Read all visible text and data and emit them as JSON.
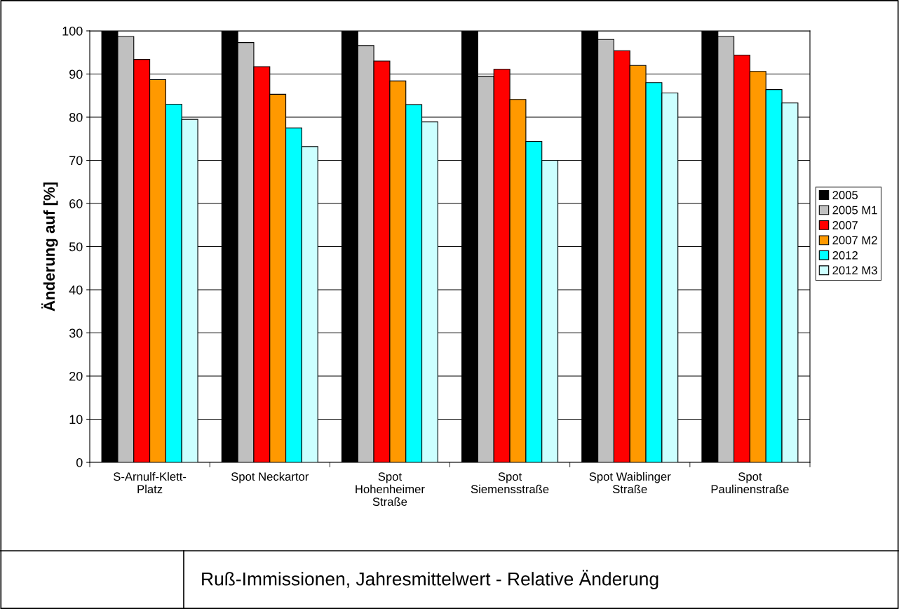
{
  "chart_data": {
    "type": "bar",
    "title": "Ruß-Immissionen, Jahresmittelwert - Relative Änderung",
    "ylabel": "Änderung auf [%]",
    "categories": [
      "S-Arnulf-Klett-\nPlatz",
      "Spot Neckartor",
      "Spot\nHohenheimer\nStraße",
      "Spot\nSiemensstraße",
      "Spot Waiblinger\nStraße",
      "Spot\nPaulinenstraße"
    ],
    "series": [
      {
        "name": "2005",
        "color": "#000000",
        "values": [
          100,
          100,
          100,
          100,
          100,
          100
        ]
      },
      {
        "name": "2005 M1",
        "color": "#c0c0c0",
        "values": [
          98.7,
          97.3,
          96.6,
          89.5,
          98.0,
          98.7
        ]
      },
      {
        "name": "2007",
        "color": "#ff0000",
        "values": [
          93.4,
          91.7,
          93.0,
          91.1,
          95.4,
          94.4
        ]
      },
      {
        "name": "2007 M2",
        "color": "#ff9900",
        "values": [
          88.7,
          85.3,
          88.4,
          84.1,
          92.0,
          90.6
        ]
      },
      {
        "name": "2012",
        "color": "#00ffff",
        "values": [
          83.0,
          77.5,
          82.9,
          74.4,
          88.0,
          86.4
        ]
      },
      {
        "name": "2012 M3",
        "color": "#ccffff",
        "values": [
          79.5,
          73.2,
          78.9,
          70.0,
          85.6,
          83.3
        ]
      }
    ],
    "ylim": [
      0,
      100
    ],
    "yticks": [
      0,
      10,
      20,
      30,
      40,
      50,
      60,
      70,
      80,
      90,
      100
    ],
    "grid": "y",
    "legend": "right"
  }
}
